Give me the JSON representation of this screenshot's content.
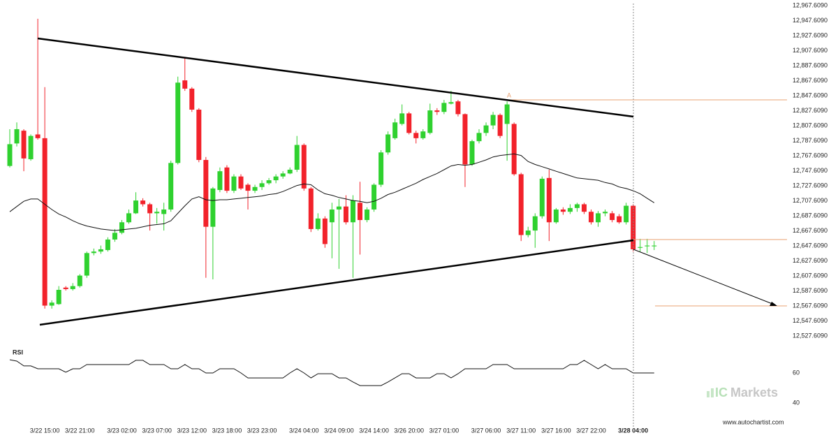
{
  "chart_data": [
    {
      "type": "candlestick",
      "categories": [
        null,
        null,
        null,
        null,
        null,
        "3/22 15:00",
        null,
        null,
        null,
        null,
        "3/22 21:00",
        null,
        null,
        null,
        null,
        null,
        "3/23 02:00",
        null,
        null,
        null,
        null,
        "3/23 07:00",
        null,
        null,
        null,
        null,
        "3/23 12:00",
        null,
        null,
        null,
        null,
        "3/23 18:00",
        null,
        null,
        null,
        null,
        "3/23 23:00",
        null,
        null,
        null,
        null,
        null,
        "3/24 04:00",
        null,
        null,
        null,
        null,
        "3/24 09:00",
        null,
        null,
        null,
        null,
        "3/24 14:00",
        null,
        null,
        null,
        null,
        "3/26 20:00",
        null,
        null,
        null,
        null,
        "3/27 01:00",
        null,
        null,
        null,
        null,
        null,
        "3/27 06:00",
        null,
        null,
        null,
        null,
        "3/27 11:00",
        null,
        null,
        null,
        null,
        "3/27 16:00",
        null,
        null,
        null,
        null,
        "3/27 22:00",
        null,
        null,
        null,
        null,
        null,
        "3/28 04:00",
        null,
        null,
        null
      ],
      "open": [
        12754,
        12784,
        12801,
        12763,
        12796,
        12791,
        12568,
        12570,
        12592,
        12590,
        12594,
        12608,
        12638,
        12640,
        12642,
        12656,
        12665,
        12679,
        12691,
        12708,
        12703,
        12691,
        12690,
        12696,
        12758,
        12868,
        12857,
        12829,
        12762,
        12673,
        12722,
        12752,
        12721,
        12740,
        12729,
        12721,
        12726,
        12731,
        12735,
        12740,
        12744,
        12749,
        12782,
        12724,
        12670,
        12684,
        12679,
        12696,
        12700,
        12679,
        12705,
        12682,
        12696,
        12729,
        12772,
        12791,
        12810,
        12824,
        12798,
        12791,
        12798,
        12828,
        12826,
        12837,
        12840,
        12823,
        12756,
        12787,
        12798,
        12808,
        12822,
        12810,
        12810,
        12743,
        12662,
        12668,
        12687,
        12738,
        12679,
        12696,
        12693,
        12698,
        12703,
        12693,
        12679,
        12691,
        12691,
        12687,
        12679,
        12701,
        12645,
        12647,
        12647
      ],
      "high": [
        12803,
        12812,
        12803,
        12796,
        12950,
        12859,
        12575,
        12594,
        12594,
        12598,
        12610,
        12640,
        12644,
        12648,
        12659,
        12670,
        12682,
        12696,
        12719,
        12711,
        12705,
        12698,
        12705,
        12761,
        12873,
        12898,
        12859,
        12831,
        12766,
        12726,
        12752,
        12755,
        12743,
        12743,
        12731,
        12729,
        12735,
        12738,
        12743,
        12747,
        12752,
        12794,
        12784,
        12726,
        12691,
        12687,
        12705,
        12710,
        12715,
        12715,
        12733,
        12699,
        12731,
        12775,
        12800,
        12817,
        12836,
        12826,
        12801,
        12803,
        12837,
        12831,
        12842,
        12854,
        12842,
        12824,
        12789,
        12803,
        12812,
        12826,
        12824,
        12840,
        12812,
        12745,
        12673,
        12691,
        12740,
        12749,
        12698,
        12699,
        12703,
        12705,
        12705,
        12696,
        12694,
        12696,
        12694,
        12690,
        12705,
        12703,
        12657,
        12657,
        12654
      ],
      "low": [
        12752,
        12780,
        12747,
        12761,
        12789,
        12564,
        12564,
        12569,
        12588,
        12588,
        12592,
        12605,
        12635,
        12637,
        12640,
        12653,
        12663,
        12677,
        12690,
        12700,
        12668,
        12677,
        12668,
        12693,
        12756,
        12854,
        12826,
        12759,
        12605,
        12603,
        12719,
        12718,
        12718,
        12722,
        12696,
        12718,
        12722,
        12729,
        12731,
        12737,
        12743,
        12746,
        12721,
        12666,
        12668,
        12645,
        12631,
        12617,
        12676,
        12605,
        12636,
        12679,
        12693,
        12726,
        12769,
        12789,
        12808,
        12796,
        12784,
        12789,
        12796,
        12822,
        12823,
        12836,
        12820,
        12726,
        12754,
        12784,
        12794,
        12803,
        12791,
        12761,
        12741,
        12654,
        12659,
        12645,
        12684,
        12654,
        12677,
        12689,
        12690,
        12693,
        12690,
        12676,
        12673,
        12687,
        12679,
        12677,
        12676,
        12640,
        12640,
        12638,
        12642
      ],
      "close": [
        12783,
        12803,
        12764,
        12794,
        12791,
        12568,
        12572,
        12589,
        12590,
        12594,
        12608,
        12638,
        12640,
        12643,
        12656,
        12665,
        12679,
        12691,
        12708,
        12703,
        12691,
        12693,
        12696,
        12758,
        12865,
        12857,
        12829,
        12762,
        12673,
        12724,
        12747,
        12721,
        12740,
        12724,
        12721,
        12726,
        12731,
        12735,
        12740,
        12744,
        12749,
        12782,
        12724,
        12670,
        12684,
        12650,
        12696,
        12700,
        12679,
        12708,
        12682,
        12696,
        12729,
        12772,
        12796,
        12812,
        12824,
        12798,
        12791,
        12800,
        12828,
        12826,
        12838,
        12839,
        12823,
        12756,
        12787,
        12798,
        12808,
        12822,
        12794,
        12836,
        12743,
        12662,
        12668,
        12687,
        12737,
        12679,
        12696,
        12693,
        12698,
        12703,
        12693,
        12679,
        12691,
        12693,
        12682,
        12679,
        12701,
        12643,
        12646,
        12648,
        12648
      ],
      "up_color": "#2fd12f",
      "down_color": "#f2222b",
      "moving_average": {
        "color": "#111111",
        "values": [
          12693,
          12700,
          12707,
          12710,
          12710,
          12703,
          12696,
          12690,
          12686,
          12681,
          12677,
          12674,
          12672,
          12670,
          12669,
          12668,
          12669,
          12670,
          12671,
          12673,
          12675,
          12676,
          12677,
          12681,
          12691,
          12701,
          12710,
          12713,
          12709,
          12708,
          12709,
          12709,
          12710,
          12711,
          12712,
          12713,
          12714,
          12716,
          12717,
          12720,
          12724,
          12728,
          12730,
          12729,
          12722,
          12717,
          12715,
          12712,
          12710,
          12708,
          12707,
          12705,
          12707,
          12711,
          12716,
          12719,
          12723,
          12727,
          12731,
          12736,
          12740,
          12744,
          12749,
          12754,
          12756,
          12755,
          12756,
          12759,
          12762,
          12766,
          12768,
          12769,
          12770,
          12768,
          12760,
          12756,
          12753,
          12750,
          12747,
          12744,
          12741,
          12738,
          12737,
          12736,
          12735,
          12732,
          12730,
          12726,
          12724,
          12721,
          12717,
          12711,
          12705
        ]
      },
      "annotation": "A",
      "ylim": [
        12527.609,
        12967.609
      ],
      "yticks": [
        {
          "value": 12527.609,
          "label": "12,527.6090"
        },
        {
          "value": 12547.609,
          "label": "12,547.6090"
        },
        {
          "value": 12567.609,
          "label": "12,567.6090"
        },
        {
          "value": 12587.609,
          "label": "12,587.6090"
        },
        {
          "value": 12607.609,
          "label": "12,607.6090"
        },
        {
          "value": 12627.609,
          "label": "12,627.6090"
        },
        {
          "value": 12647.609,
          "label": "12,647.6090"
        },
        {
          "value": 12667.609,
          "label": "12,667.6090"
        },
        {
          "value": 12687.609,
          "label": "12,687.6090"
        },
        {
          "value": 12707.609,
          "label": "12,707.6090"
        },
        {
          "value": 12727.609,
          "label": "12,727.6090"
        },
        {
          "value": 12747.609,
          "label": "12,747.6090"
        },
        {
          "value": 12767.609,
          "label": "12,767.6090"
        },
        {
          "value": 12787.609,
          "label": "12,787.6090"
        },
        {
          "value": 12807.609,
          "label": "12,807.6090"
        },
        {
          "value": 12827.609,
          "label": "12,827.6090"
        },
        {
          "value": 12847.609,
          "label": "12,847.6090"
        },
        {
          "value": 12867.609,
          "label": "12,867.6090"
        },
        {
          "value": 12887.609,
          "label": "12,887.6090"
        },
        {
          "value": 12907.609,
          "label": "12,907.6090"
        },
        {
          "value": 12927.609,
          "label": "12,927.6090"
        },
        {
          "value": 12947.609,
          "label": "12,947.6090"
        },
        {
          "value": 12967.609,
          "label": "12,967.6090"
        }
      ]
    },
    {
      "type": "line",
      "title": "RSI",
      "color": "#111111",
      "values": [
        68.8,
        67.9,
        64.7,
        64.7,
        62.8,
        62.8,
        62.8,
        62.8,
        60.5,
        62.8,
        62.8,
        65.6,
        65.6,
        65.6,
        65.6,
        65.6,
        65.6,
        65.6,
        68.4,
        68.4,
        65.6,
        65.6,
        65.6,
        62.8,
        62.8,
        65.6,
        62.8,
        62.8,
        60,
        60,
        62.8,
        62.8,
        62.8,
        60,
        56.7,
        56.7,
        56.7,
        56.7,
        56.7,
        56.7,
        60,
        62.8,
        60,
        56.7,
        59.5,
        59.5,
        59.5,
        56.7,
        56.7,
        54,
        51.6,
        51.6,
        51.6,
        51.6,
        54,
        56.7,
        59.5,
        59.5,
        56.7,
        56.7,
        56.7,
        59.5,
        59.5,
        56.7,
        59.5,
        62.8,
        62.8,
        62.8,
        62.8,
        65.6,
        65.6,
        65.6,
        62.8,
        62.8,
        62.8,
        62.8,
        62.8,
        62.8,
        62.8,
        62.8,
        65.6,
        65.6,
        68.4,
        65.6,
        62.8,
        65.6,
        62.8,
        62.8,
        62.8,
        60,
        60,
        60,
        60
      ],
      "ylim": [
        30,
        78
      ],
      "yticks": [
        60,
        40
      ]
    }
  ],
  "footer": "www.autochartist.com",
  "logo": {
    "prefix": "IC",
    "text": "Markets"
  }
}
